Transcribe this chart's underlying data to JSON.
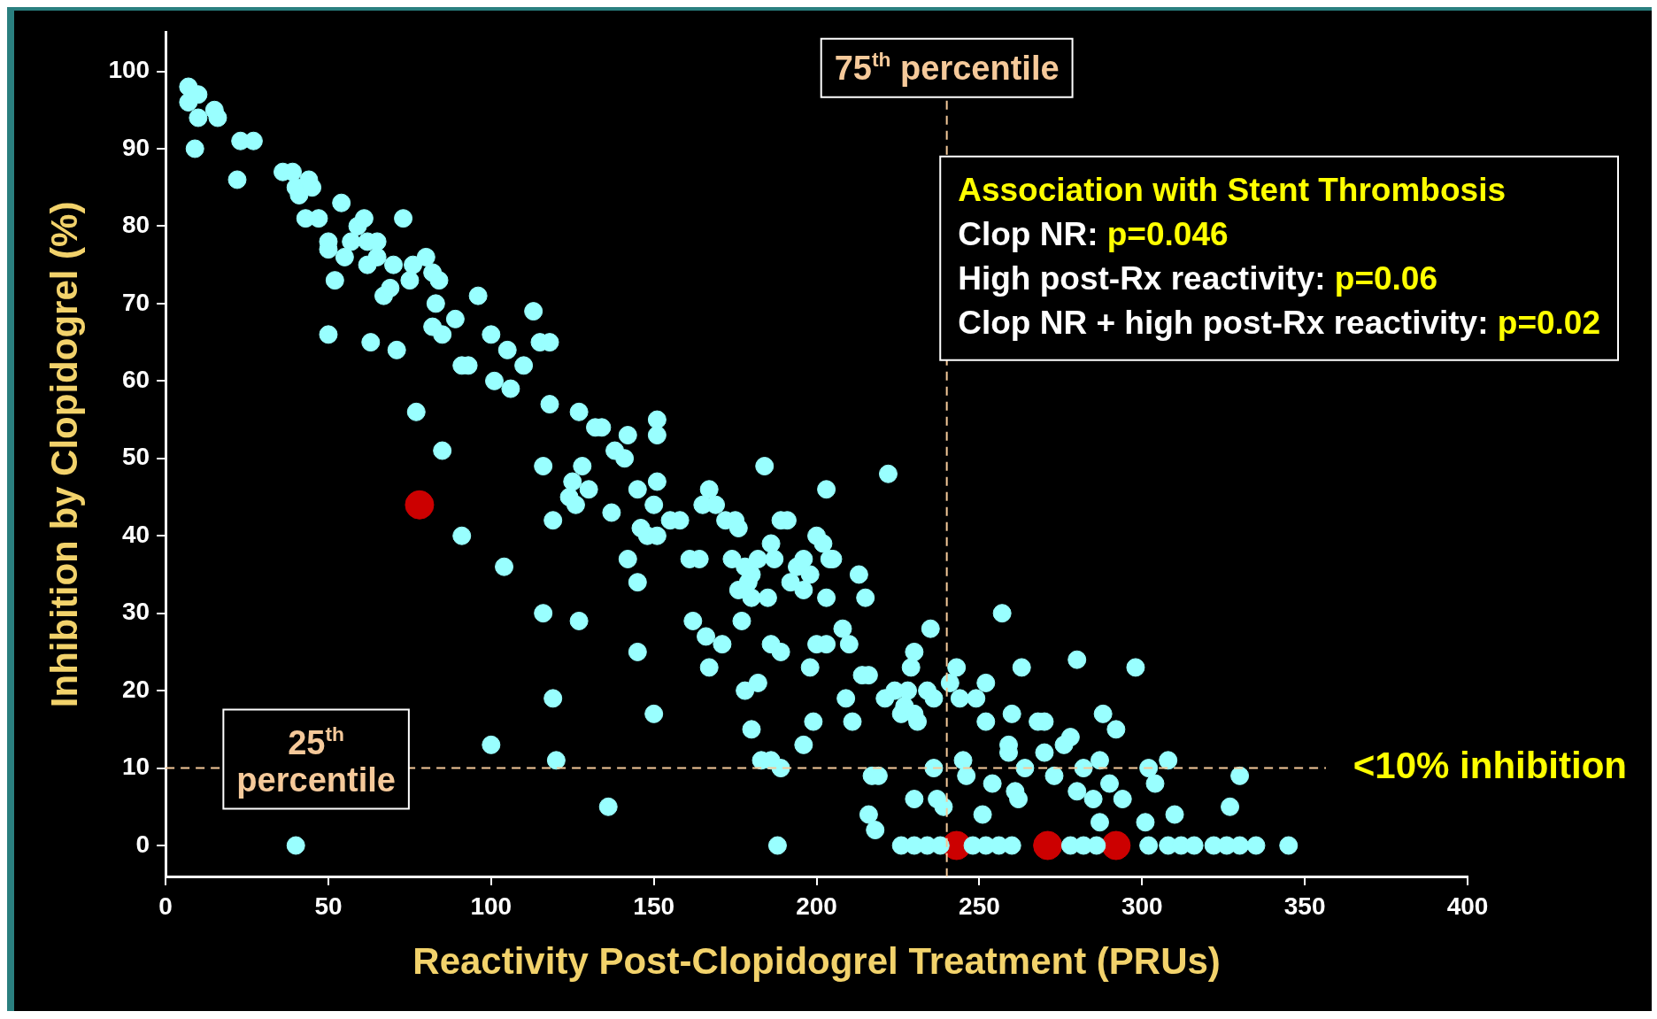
{
  "chart_data": {
    "type": "scatter",
    "xlabel": "Reactivity Post-Clopidogrel Treatment (PRUs)",
    "ylabel": "Inhibition by Clopidogrel (%)",
    "xlim": [
      0,
      400
    ],
    "xticks": [
      0,
      50,
      100,
      150,
      200,
      250,
      300,
      350,
      400
    ],
    "ylim": [
      -4,
      105
    ],
    "yticks": [
      0,
      10,
      20,
      30,
      40,
      50,
      60,
      70,
      80,
      90,
      100
    ],
    "grid": false,
    "legend": false,
    "marker": "circle",
    "series": [
      {
        "color": "#99ffff",
        "x": [
          7,
          7,
          10,
          10,
          15,
          16,
          9,
          22,
          23,
          27,
          36,
          39,
          40,
          41,
          44,
          45,
          43,
          47,
          50,
          50,
          52,
          54,
          55,
          57,
          59,
          61,
          62,
          62,
          65,
          65,
          67,
          69,
          70,
          73,
          75,
          76,
          80,
          82,
          83,
          84,
          82,
          85,
          89,
          91,
          93,
          96,
          50,
          63,
          71,
          77,
          85,
          91,
          100,
          101,
          105,
          106,
          110,
          113,
          115,
          118,
          116,
          118,
          119,
          124,
          125,
          126,
          127,
          128,
          130,
          132,
          134,
          137,
          138,
          141,
          142,
          142,
          145,
          145,
          146,
          148,
          150,
          151,
          151,
          151,
          151,
          155,
          158,
          164,
          165,
          167,
          169,
          172,
          175,
          176,
          174,
          176,
          178,
          179,
          180,
          177,
          180,
          182,
          184,
          185,
          186,
          187,
          189,
          191,
          192,
          194,
          196,
          196,
          198,
          200,
          202,
          203,
          204,
          205,
          203,
          200,
          203,
          198,
          199,
          196,
          186,
          189,
          178,
          182,
          180,
          183,
          186,
          189,
          171,
          166,
          167,
          162,
          161,
          150,
          145,
          136,
          127,
          120,
          119,
          116,
          104,
          100,
          40,
          188,
          208,
          210,
          209,
          211,
          214,
          216,
          215,
          213,
          222,
          217,
          219,
          216,
          218,
          221,
          224,
          226,
          227,
          229,
          230,
          230,
          231,
          228,
          230,
          234,
          235,
          236,
          236,
          237,
          239,
          241,
          243,
          244,
          245,
          246,
          249,
          251,
          252,
          252,
          254,
          257,
          259,
          259,
          260,
          261,
          262,
          263,
          264,
          268,
          270,
          270,
          273,
          276,
          278,
          280,
          280,
          282,
          285,
          287,
          287,
          288,
          290,
          292,
          294,
          298,
          301,
          302,
          304,
          308,
          310,
          327,
          330,
          226,
          230,
          234,
          238,
          248,
          252,
          256,
          260,
          278,
          282,
          286,
          302,
          308,
          312,
          316,
          322,
          326,
          330,
          335,
          345
        ],
        "values": [
          98,
          96,
          97,
          94,
          95,
          94,
          90,
          86,
          91,
          91,
          87,
          87,
          85,
          84,
          86,
          85,
          81,
          81,
          78,
          77,
          73,
          83,
          76,
          78,
          80,
          81,
          78,
          75,
          76,
          78,
          71,
          72,
          75,
          81,
          73,
          75,
          76,
          74,
          70,
          73,
          67,
          66,
          68,
          62,
          62,
          71,
          66,
          65,
          64,
          56,
          51,
          40,
          66,
          60,
          64,
          59,
          62,
          69,
          65,
          65,
          49,
          57,
          42,
          45,
          47,
          44,
          56,
          49,
          46,
          54,
          54,
          43,
          51,
          50,
          53,
          37,
          46,
          34,
          41,
          40,
          44,
          47,
          55,
          53,
          40,
          42,
          42,
          37,
          44,
          46,
          44,
          42,
          42,
          41,
          37,
          33,
          36,
          34,
          35,
          29,
          32,
          37,
          49,
          32,
          39,
          37,
          42,
          42,
          34,
          36,
          33,
          37,
          35,
          40,
          39,
          46,
          37,
          37,
          32,
          26,
          26,
          23,
          16,
          13,
          26,
          25,
          20,
          21,
          15,
          11,
          11,
          10,
          26,
          27,
          23,
          29,
          37,
          17,
          25,
          5,
          29,
          11,
          19,
          30,
          36,
          13,
          0,
          0,
          28,
          26,
          19,
          16,
          22,
          22,
          32,
          35,
          48,
          9,
          9,
          4,
          2,
          19,
          20,
          17,
          18,
          23,
          25,
          17,
          16,
          20,
          6,
          20,
          28,
          19,
          10,
          6,
          5,
          21,
          23,
          19,
          11,
          9,
          19,
          4,
          21,
          16,
          8,
          30,
          13,
          12,
          17,
          7,
          6,
          23,
          10,
          16,
          16,
          12,
          9,
          13,
          14,
          24,
          7,
          10,
          6,
          3,
          11,
          17,
          8,
          15,
          6,
          23,
          3,
          10,
          8,
          11,
          4,
          5,
          9,
          0,
          0,
          0,
          0,
          0,
          0,
          0,
          0,
          0,
          0,
          0,
          0,
          0,
          0,
          0,
          0,
          0,
          0,
          0,
          0
        ]
      },
      {
        "color": "#cc0000",
        "x": [
          78,
          243,
          271,
          292
        ],
        "values": [
          44,
          0,
          0,
          0
        ]
      }
    ],
    "ref_lines": [
      {
        "axis": "x",
        "value": 240,
        "label": "75$^{th}$ percentile",
        "color": "#f5c99a",
        "line_style": "dashed"
      },
      {
        "axis": "y",
        "value": 10,
        "label": "25$^{th}$ percentile",
        "color": "#f5c99a",
        "line_style": "dashed"
      }
    ],
    "annotations": [
      "<10% inhibition",
      "Association with Stent Thrombosis",
      "Clop NR: p=0.046",
      "High post-Rx reactivity: p=0.06",
      "Clop NR + high post-Rx reactivity: p=0.02"
    ]
  }
}
